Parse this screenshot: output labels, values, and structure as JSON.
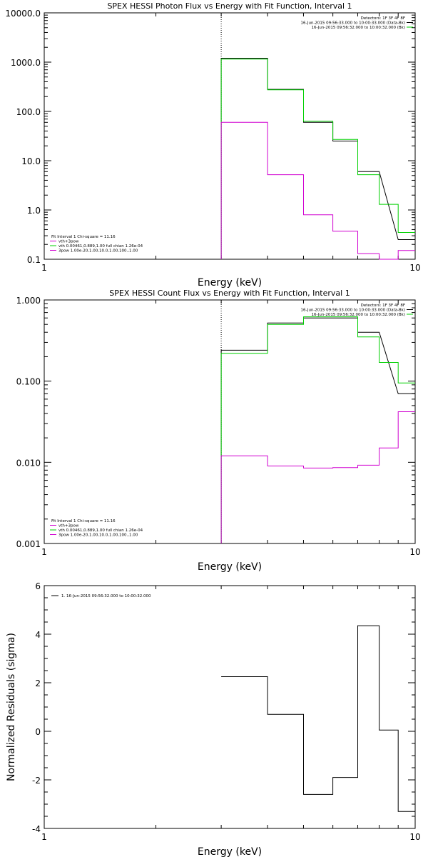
{
  "colors": {
    "observed": "#000000",
    "fit_total": "#00d000",
    "component": "#d000d0",
    "marker": "#000000"
  },
  "chart_data": [
    {
      "type": "line",
      "title": "SPEX HESSI Photon Flux vs Energy with Fit Function, Interval 1",
      "xlabel": "Energy (keV)",
      "ylabel": "",
      "xscale": "log",
      "yscale": "log",
      "xlim": [
        1,
        10
      ],
      "ylim": [
        0.1,
        10000
      ],
      "xticks": [
        "1",
        "10"
      ],
      "yticks": [
        "0.1",
        "1.0",
        "10.0",
        "100.0",
        "1000.0",
        "10000.0"
      ],
      "marker_x": 3,
      "top_right_text": [
        "Detectors: 1F 3F 4F 8F",
        "16-Jun-2015 09:56:33.000 to 10:00:33.000 (Data-Bk)",
        "16-Jun-2015 09:56:32.000 to 10:00:32.000 (Bk)"
      ],
      "legend_text": [
        "Fit Interval  1    Chi-square = 11.16",
        "vth+3pow",
        "vth 0.00461,0.889,1.00  full chian 1.26e-04",
        "3pow 1.00e-20,1.00,10.0,1.00,100.,1.00"
      ],
      "x_edges": [
        3,
        4,
        5,
        6,
        7,
        8,
        9,
        10
      ],
      "series": [
        {
          "name": "Data-Bk",
          "values": [
            1200,
            280,
            60,
            25,
            6,
            null,
            0.25
          ]
        },
        {
          "name": "vth+3pow",
          "values": [
            1150,
            275,
            63,
            27,
            5.2,
            1.3,
            0.35
          ]
        },
        {
          "name": "Bk",
          "values": [
            60,
            5.2,
            0.8,
            0.37,
            0.13,
            0.1,
            0.15
          ]
        }
      ]
    },
    {
      "type": "line",
      "title": "SPEX HESSI Count Flux vs Energy with Fit Function, Interval 1",
      "xlabel": "Energy (keV)",
      "ylabel": "",
      "xscale": "log",
      "yscale": "log",
      "xlim": [
        1,
        10
      ],
      "ylim": [
        0.001,
        1.0
      ],
      "xticks": [
        "1",
        "10"
      ],
      "yticks": [
        "0.001",
        "0.010",
        "0.100",
        "1.000"
      ],
      "marker_x": 3,
      "top_right_text": [
        "Detectors: 1F 3F 4F 8F",
        "16-Jun-2015 09:56:33.000 to 10:00:33.000 (Data-Bk)",
        "16-Jun-2015 09:56:32.000 to 10:00:32.000 (Bk)"
      ],
      "legend_text": [
        "Fit Interval  1    Chi-square = 11.16",
        "vth+3pow",
        "vth 0.00461,0.889,1.00  full chian 1.26e-04",
        "3pow 1.00e-20,1.00,10.0,1.00,100.,1.00"
      ],
      "x_edges": [
        3,
        4,
        5,
        6,
        7,
        8,
        9,
        10
      ],
      "series": [
        {
          "name": "Data-Bk",
          "values": [
            0.24,
            0.52,
            0.6,
            0.6,
            0.4,
            null,
            0.07
          ]
        },
        {
          "name": "vth+3pow",
          "values": [
            0.22,
            0.5,
            0.62,
            0.62,
            0.35,
            0.17,
            0.095
          ]
        },
        {
          "name": "Bk",
          "values": [
            0.012,
            0.009,
            0.0085,
            0.0086,
            0.0092,
            0.015,
            0.042
          ]
        }
      ]
    },
    {
      "type": "line",
      "title": "",
      "xlabel": "Energy (keV)",
      "ylabel": "Normalized Residuals (sigma)",
      "xscale": "log",
      "yscale": "linear",
      "xlim": [
        1,
        10
      ],
      "ylim": [
        -4,
        6
      ],
      "xticks": [
        "1",
        "10"
      ],
      "yticks": [
        "-4",
        "-2",
        "0",
        "2",
        "4",
        "6"
      ],
      "legend_text": [
        "1. 16-Jun-2015 09:56:32.000 to 10:00:32.000"
      ],
      "x_edges": [
        3,
        4,
        5,
        6,
        7,
        8,
        9,
        10
      ],
      "series": [
        {
          "name": "1. 16-Jun-2015 09:56:32.000 to 10:00:32.000",
          "values": [
            2.25,
            0.7,
            -2.6,
            -1.9,
            4.35,
            0.05,
            -3.3
          ]
        }
      ]
    }
  ]
}
